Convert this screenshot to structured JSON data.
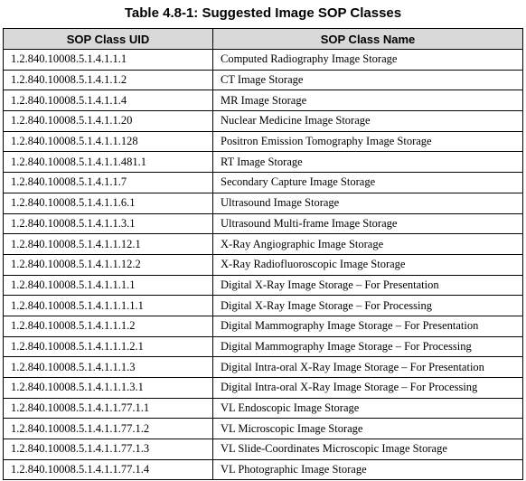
{
  "caption": "Table 4.8-1: Suggested Image SOP Classes",
  "columns": [
    "SOP Class UID",
    "SOP Class Name"
  ],
  "rows": [
    [
      "1.2.840.10008.5.1.4.1.1.1",
      "Computed Radiography Image Storage"
    ],
    [
      "1.2.840.10008.5.1.4.1.1.2",
      "CT Image Storage"
    ],
    [
      "1.2.840.10008.5.1.4.1.1.4",
      "MR Image Storage"
    ],
    [
      "1.2.840.10008.5.1.4.1.1.20",
      "Nuclear Medicine Image Storage"
    ],
    [
      "1.2.840.10008.5.1.4.1.1.128",
      "Positron Emission Tomography Image Storage"
    ],
    [
      "1.2.840.10008.5.1.4.1.1.481.1",
      "RT Image Storage"
    ],
    [
      "1.2.840.10008.5.1.4.1.1.7",
      "Secondary Capture Image Storage"
    ],
    [
      "1.2.840.10008.5.1.4.1.1.6.1",
      "Ultrasound Image Storage"
    ],
    [
      "1.2.840.10008.5.1.4.1.1.3.1",
      "Ultrasound Multi-frame Image Storage"
    ],
    [
      "1.2.840.10008.5.1.4.1.1.12.1",
      "X-Ray Angiographic Image Storage"
    ],
    [
      "1.2.840.10008.5.1.4.1.1.12.2",
      "X-Ray Radiofluoroscopic Image Storage"
    ],
    [
      "1.2.840.10008.5.1.4.1.1.1.1",
      "Digital X-Ray Image Storage – For Presentation"
    ],
    [
      "1.2.840.10008.5.1.4.1.1.1.1.1",
      "Digital X-Ray Image Storage – For Processing"
    ],
    [
      "1.2.840.10008.5.1.4.1.1.1.2",
      "Digital Mammography Image Storage – For Presentation"
    ],
    [
      "1.2.840.10008.5.1.4.1.1.1.2.1",
      "Digital Mammography Image Storage – For Processing"
    ],
    [
      "1.2.840.10008.5.1.4.1.1.1.3",
      "Digital Intra-oral X-Ray Image Storage – For Presentation"
    ],
    [
      "1.2.840.10008.5.1.4.1.1.1.3.1",
      "Digital Intra-oral X-Ray Image Storage – For Processing"
    ],
    [
      "1.2.840.10008.5.1.4.1.1.77.1.1",
      "VL Endoscopic Image Storage"
    ],
    [
      "1.2.840.10008.5.1.4.1.1.77.1.2",
      "VL Microscopic Image Storage"
    ],
    [
      "1.2.840.10008.5.1.4.1.1.77.1.3",
      "VL Slide-Coordinates Microscopic Image Storage"
    ],
    [
      "1.2.840.10008.5.1.4.1.1.77.1.4",
      "VL Photographic Image Storage"
    ]
  ]
}
